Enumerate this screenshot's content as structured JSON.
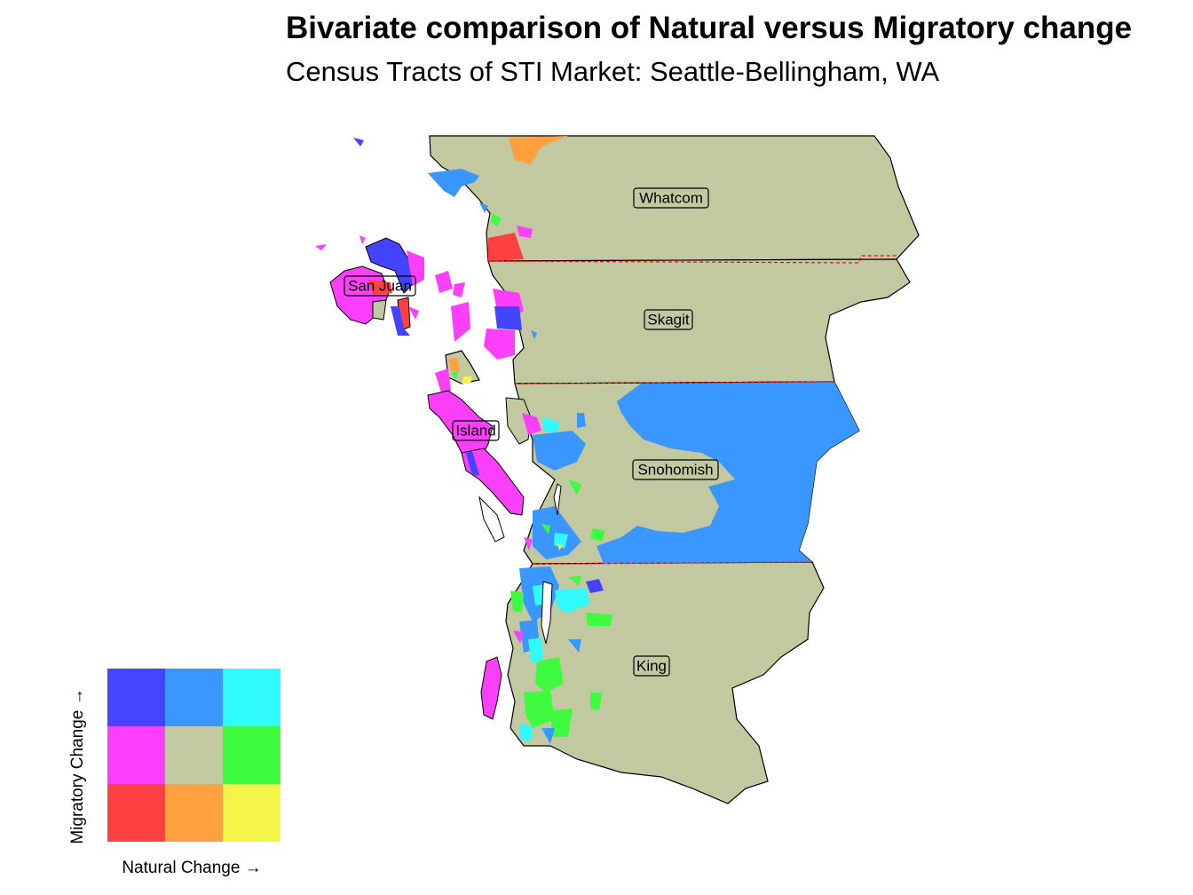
{
  "title": "Bivariate comparison of Natural versus Migratory change",
  "subtitle": "Census Tracts of STI Market: Seattle-Bellingham, WA",
  "colors": {
    "high_mig_low_nat": "#4444ff",
    "high_mig_mid_nat": "#3a97ff",
    "high_mig_high_nat": "#2ffbff",
    "mid_mig_low_nat": "#fb3ffb",
    "mid_mig_mid_nat": "#c2c9a1",
    "mid_mig_high_nat": "#3ffb3f",
    "low_mig_low_nat": "#ff4040",
    "low_mig_mid_nat": "#ffa040",
    "low_mig_high_nat": "#f3f348",
    "county_border": "#ff0000",
    "outline": "#000000"
  },
  "counties": [
    {
      "name": "Whatcom"
    },
    {
      "name": "Skagit"
    },
    {
      "name": "San Juan"
    },
    {
      "name": "Island"
    },
    {
      "name": "Snohomish"
    },
    {
      "name": "King"
    }
  ],
  "legend": {
    "x_label": "Natural Change →",
    "y_label": "Migratory Change →",
    "grid": [
      [
        "high_mig_low_nat",
        "high_mig_mid_nat",
        "high_mig_high_nat"
      ],
      [
        "mid_mig_low_nat",
        "mid_mig_mid_nat",
        "mid_mig_high_nat"
      ],
      [
        "low_mig_low_nat",
        "low_mig_mid_nat",
        "low_mig_high_nat"
      ]
    ]
  }
}
